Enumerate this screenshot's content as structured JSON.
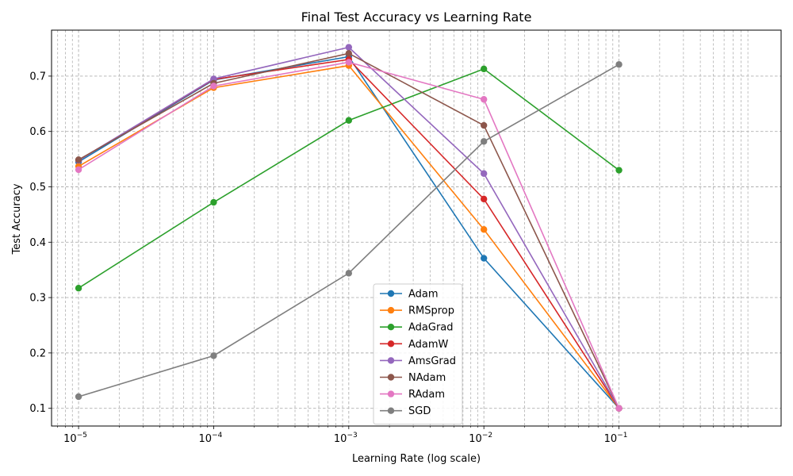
{
  "chart_data": {
    "type": "line",
    "title": "Final Test Accuracy vs Learning Rate",
    "xlabel": "Learning Rate (log scale)",
    "ylabel": "Test Accuracy",
    "x_scale": "log",
    "x": [
      1e-05,
      0.0001,
      0.001,
      0.01,
      0.1
    ],
    "x_tick_labels": [
      {
        "base": "10",
        "exp": "−5"
      },
      {
        "base": "10",
        "exp": "−4"
      },
      {
        "base": "10",
        "exp": "−3"
      },
      {
        "base": "10",
        "exp": "−2"
      },
      {
        "base": "10",
        "exp": "−1"
      }
    ],
    "y_ticks": [
      "0.1",
      "0.2",
      "0.3",
      "0.4",
      "0.5",
      "0.6",
      "0.7"
    ],
    "ylim": [
      0.068,
      0.783
    ],
    "xlim_log10": [
      -5.2,
      0.2
    ],
    "grid": true,
    "legend_position": "lower center",
    "series": [
      {
        "name": "Adam",
        "color": "#1f77b4",
        "values": [
          0.545,
          0.693,
          0.735,
          0.371,
          0.1
        ]
      },
      {
        "name": "RMSprop",
        "color": "#ff7f0e",
        "values": [
          0.537,
          0.679,
          0.719,
          0.423,
          0.1
        ]
      },
      {
        "name": "AdaGrad",
        "color": "#2ca02c",
        "values": [
          0.317,
          0.472,
          0.62,
          0.713,
          0.53
        ]
      },
      {
        "name": "AdamW",
        "color": "#d62728",
        "values": [
          0.548,
          0.694,
          0.73,
          0.478,
          0.1
        ]
      },
      {
        "name": "AmsGrad",
        "color": "#9467bd",
        "values": [
          0.548,
          0.695,
          0.752,
          0.524,
          0.1
        ]
      },
      {
        "name": "NAdam",
        "color": "#8c564b",
        "values": [
          0.549,
          0.687,
          0.741,
          0.611,
          0.1
        ]
      },
      {
        "name": "RAdam",
        "color": "#e377c2",
        "values": [
          0.531,
          0.682,
          0.725,
          0.658,
          0.1
        ]
      },
      {
        "name": "SGD",
        "color": "#7f7f7f",
        "values": [
          0.121,
          0.195,
          0.344,
          0.582,
          0.721
        ]
      }
    ]
  }
}
